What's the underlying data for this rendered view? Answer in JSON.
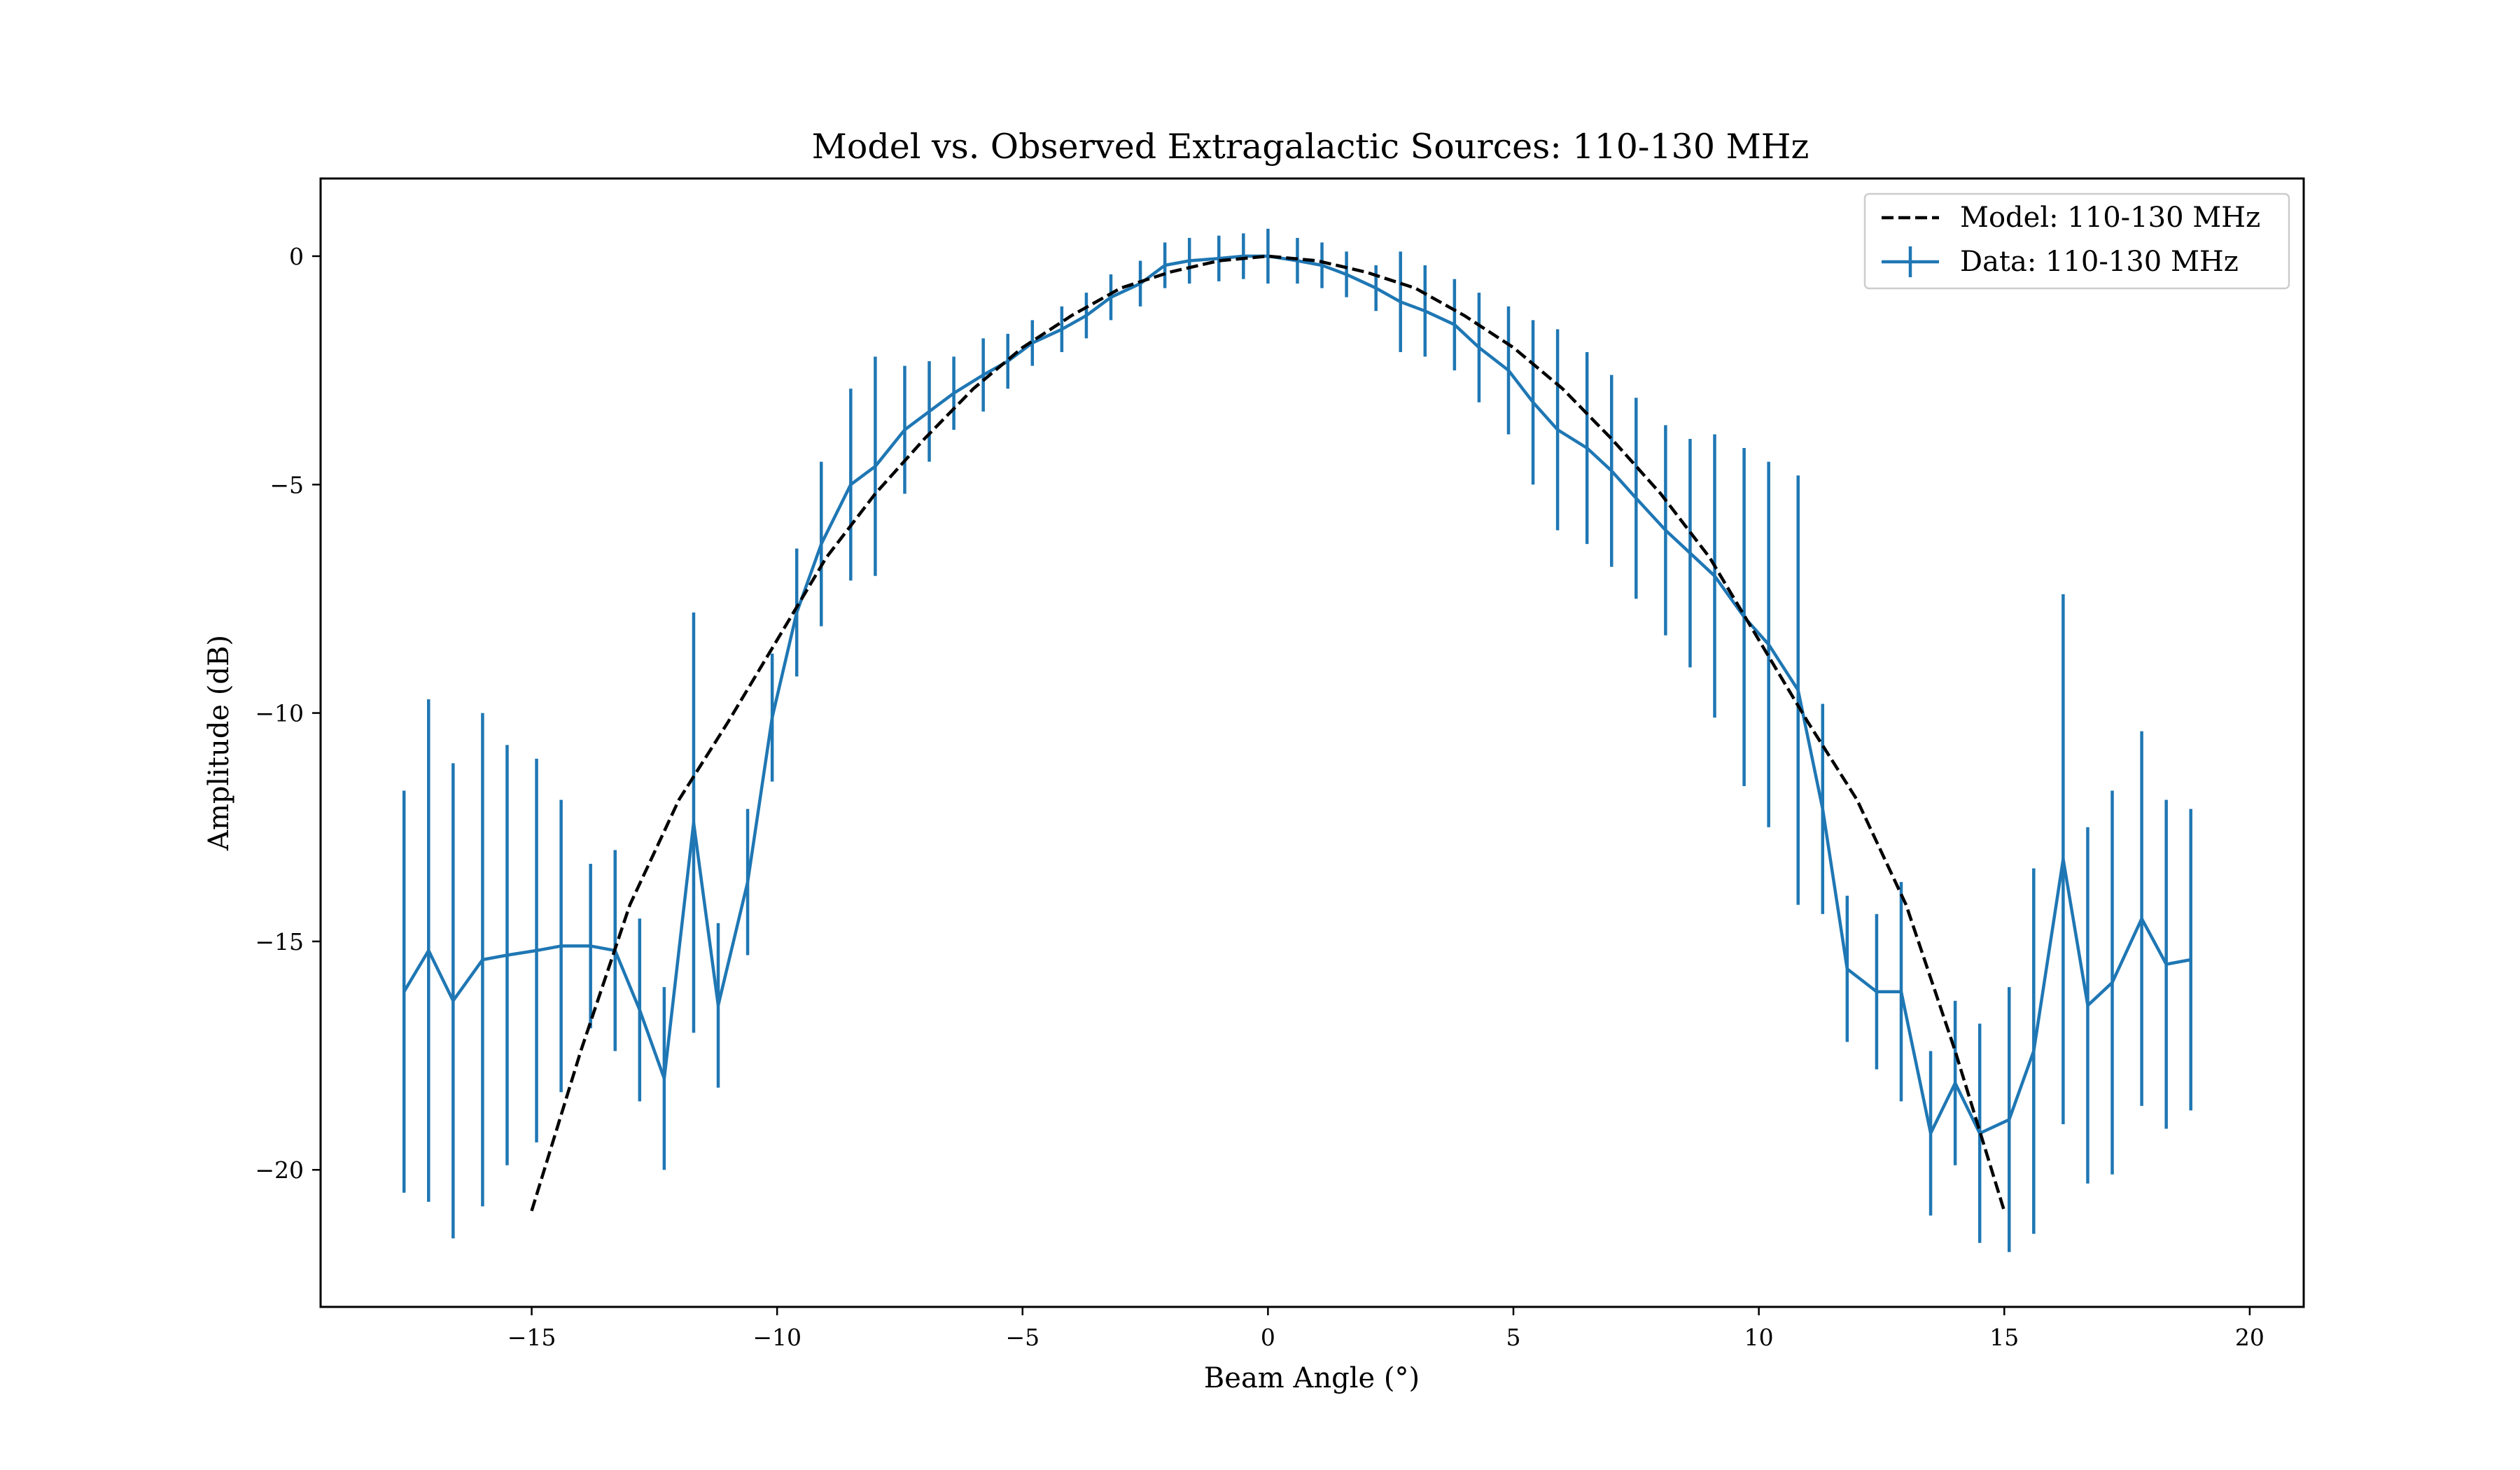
{
  "chart_data": {
    "type": "line",
    "title": "Model vs. Observed Extragalactic Sources: 110-130 MHz",
    "xlabel": "Beam Angle ($^\\circ$)",
    "xlabel_display": "Beam Angle (°)",
    "ylabel": "Amplitude (dB)",
    "xlim": [
      -19.3,
      21.1
    ],
    "ylim": [
      -23.0,
      1.7
    ],
    "xticks": [
      -15,
      -10,
      -5,
      0,
      5,
      10,
      15,
      20
    ],
    "xtick_labels": [
      "−15",
      "−10",
      "−5",
      "0",
      "5",
      "10",
      "15",
      "20"
    ],
    "yticks": [
      0,
      -5,
      -10,
      -15,
      -20
    ],
    "ytick_labels": [
      "0",
      "−5",
      "−10",
      "−15",
      "−20"
    ],
    "grid": false,
    "legend_position": "top-right",
    "series": [
      {
        "name": "Model: 110-130 MHz",
        "style": "dashed",
        "color": "#000000",
        "x": [
          -15,
          -14,
          -13,
          -12,
          -11,
          -10,
          -9,
          -8,
          -7,
          -6,
          -5,
          -4,
          -3,
          -2,
          -1,
          0,
          1,
          2,
          3,
          4,
          5,
          6,
          7,
          8,
          9,
          10,
          11,
          12,
          13,
          14,
          15
        ],
        "y": [
          -20.9,
          -17.4,
          -14.2,
          -11.9,
          -10.2,
          -8.4,
          -6.6,
          -5.2,
          -4.0,
          -2.9,
          -2.0,
          -1.3,
          -0.7,
          -0.35,
          -0.1,
          0.0,
          -0.1,
          -0.35,
          -0.7,
          -1.3,
          -2.0,
          -2.9,
          -4.0,
          -5.2,
          -6.6,
          -8.4,
          -10.2,
          -11.9,
          -14.2,
          -17.4,
          -20.9
        ]
      },
      {
        "name": "Data: 110-130 MHz",
        "style": "solid-errorbar",
        "color": "#1f77b4",
        "x": [
          -17.6,
          -17.1,
          -16.6,
          -16.0,
          -15.5,
          -14.9,
          -14.4,
          -13.8,
          -13.3,
          -12.8,
          -12.3,
          -11.7,
          -11.2,
          -10.6,
          -10.1,
          -9.6,
          -9.1,
          -8.5,
          -8.0,
          -7.4,
          -6.9,
          -6.4,
          -5.8,
          -5.3,
          -4.8,
          -4.2,
          -3.7,
          -3.2,
          -2.6,
          -2.1,
          -1.6,
          -1.0,
          -0.5,
          0.0,
          0.6,
          1.1,
          1.6,
          2.2,
          2.7,
          3.2,
          3.8,
          4.3,
          4.9,
          5.4,
          5.9,
          6.5,
          7.0,
          7.5,
          8.1,
          8.6,
          9.1,
          9.7,
          10.2,
          10.8,
          11.3,
          11.8,
          12.4,
          12.9,
          13.5,
          14.0,
          14.5,
          15.1,
          15.6,
          16.2,
          16.7,
          17.2,
          17.8,
          18.3,
          18.8
        ],
        "y": [
          -16.1,
          -15.2,
          -16.3,
          -15.4,
          -15.3,
          -15.2,
          -15.1,
          -15.1,
          -15.2,
          -16.5,
          -18.0,
          -12.4,
          -16.4,
          -13.7,
          -10.1,
          -7.8,
          -6.3,
          -5.0,
          -4.6,
          -3.8,
          -3.4,
          -3.0,
          -2.6,
          -2.3,
          -1.9,
          -1.6,
          -1.3,
          -0.9,
          -0.6,
          -0.2,
          -0.1,
          -0.05,
          0.0,
          0.0,
          -0.1,
          -0.2,
          -0.4,
          -0.7,
          -1.0,
          -1.2,
          -1.5,
          -2.0,
          -2.5,
          -3.2,
          -3.8,
          -4.2,
          -4.7,
          -5.3,
          -6.0,
          -6.5,
          -7.0,
          -7.9,
          -8.5,
          -9.5,
          -12.1,
          -15.6,
          -16.1,
          -16.1,
          -19.2,
          -18.1,
          -19.2,
          -18.9,
          -17.4,
          -13.2,
          -16.4,
          -15.9,
          -14.5,
          -15.5,
          -15.4
        ],
        "err": [
          4.4,
          5.5,
          5.2,
          5.4,
          4.6,
          4.2,
          3.2,
          1.8,
          2.2,
          2.0,
          2.0,
          4.6,
          1.8,
          1.6,
          1.4,
          1.4,
          1.8,
          2.1,
          2.4,
          1.4,
          1.1,
          0.8,
          0.8,
          0.6,
          0.5,
          0.5,
          0.5,
          0.5,
          0.5,
          0.5,
          0.5,
          0.5,
          0.5,
          0.6,
          0.5,
          0.5,
          0.5,
          0.5,
          1.1,
          1.0,
          1.0,
          1.2,
          1.4,
          1.8,
          2.2,
          2.1,
          2.1,
          2.2,
          2.3,
          2.5,
          3.1,
          3.7,
          4.0,
          4.7,
          2.3,
          1.6,
          1.7,
          2.4,
          1.8,
          1.8,
          2.4,
          2.9,
          4.0,
          5.8,
          3.9,
          4.2,
          4.1,
          3.6,
          3.3
        ]
      }
    ]
  }
}
